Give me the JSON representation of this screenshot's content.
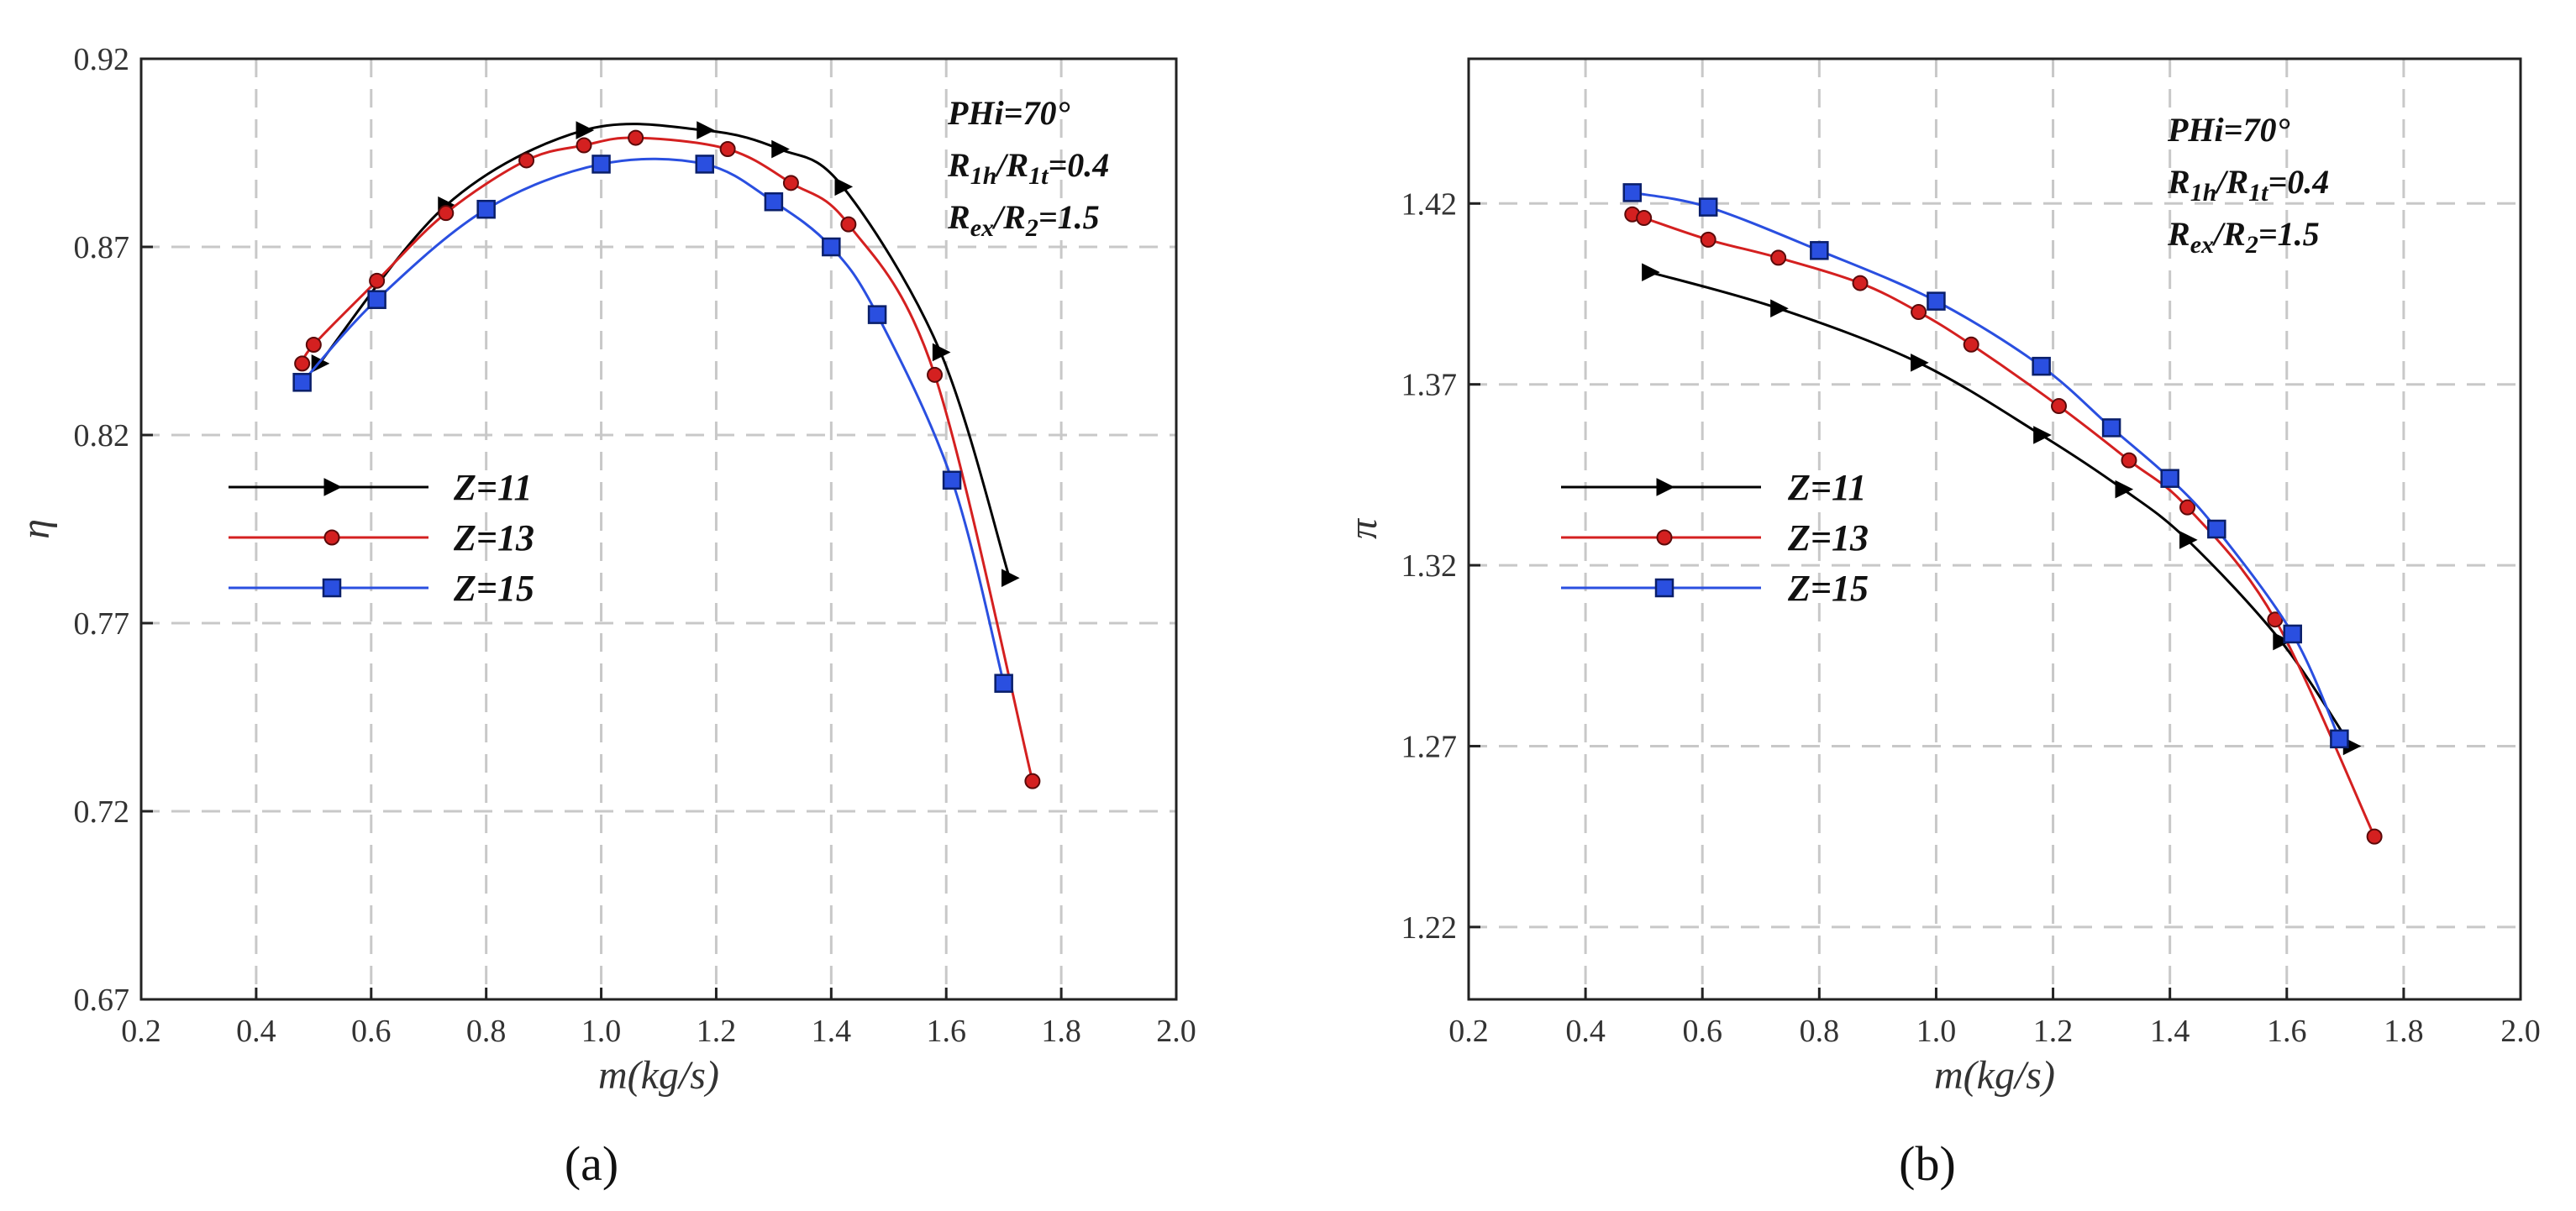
{
  "chart_data": [
    {
      "type": "line",
      "panel_label": "(a)",
      "xlabel": "m(kg/s)",
      "ylabel": "η",
      "xlim": [
        0.2,
        2.0
      ],
      "ylim": [
        0.67,
        0.92
      ],
      "xticks": [
        "0.2",
        "0.4",
        "0.6",
        "0.8",
        "1.0",
        "1.2",
        "1.4",
        "1.6",
        "1.8",
        "2.0"
      ],
      "yticks": [
        "0.67",
        "0.72",
        "0.77",
        "0.82",
        "0.87",
        "0.92"
      ],
      "grid": true,
      "legend_position": "center-left",
      "annotations": [
        "PHi=70°",
        "R1h/R1t=0.4",
        "Rex/R2=1.5"
      ],
      "series": [
        {
          "name": "Z=11",
          "color": "#000000",
          "marker": "triangle-right",
          "x": [
            0.51,
            0.73,
            0.97,
            1.18,
            1.31,
            1.42,
            1.59,
            1.71
          ],
          "y": [
            0.839,
            0.881,
            0.901,
            0.901,
            0.896,
            0.886,
            0.842,
            0.782
          ]
        },
        {
          "name": "Z=13",
          "color": "#d42020",
          "marker": "circle",
          "x": [
            0.48,
            0.5,
            0.61,
            0.73,
            0.87,
            0.97,
            1.06,
            1.22,
            1.33,
            1.43,
            1.58,
            1.75
          ],
          "y": [
            0.839,
            0.844,
            0.861,
            0.879,
            0.893,
            0.897,
            0.899,
            0.896,
            0.887,
            0.876,
            0.836,
            0.728
          ]
        },
        {
          "name": "Z=15",
          "color": "#2a4fe0",
          "marker": "square",
          "x": [
            0.48,
            0.61,
            0.8,
            1.0,
            1.18,
            1.3,
            1.4,
            1.48,
            1.61,
            1.7
          ],
          "y": [
            0.834,
            0.856,
            0.88,
            0.892,
            0.892,
            0.882,
            0.87,
            0.852,
            0.808,
            0.754
          ]
        }
      ]
    },
    {
      "type": "line",
      "panel_label": "(b)",
      "xlabel": "m(kg/s)",
      "ylabel": "π",
      "xlim": [
        0.2,
        2.0
      ],
      "ylim": [
        1.2,
        1.46
      ],
      "xticks": [
        "0.2",
        "0.4",
        "0.6",
        "0.8",
        "1.0",
        "1.2",
        "1.4",
        "1.6",
        "1.8",
        "2.0"
      ],
      "yticks": [
        "1.22",
        "1.27",
        "1.32",
        "1.37",
        "1.42"
      ],
      "grid": true,
      "legend_position": "center-left",
      "annotations": [
        "PHi=70°",
        "R1h/R1t=0.4",
        "Rex/R2=1.5"
      ],
      "series": [
        {
          "name": "Z=11",
          "color": "#000000",
          "marker": "triangle-right",
          "x": [
            0.51,
            0.73,
            0.97,
            1.18,
            1.32,
            1.43,
            1.59,
            1.71
          ],
          "y": [
            1.401,
            1.391,
            1.376,
            1.356,
            1.341,
            1.327,
            1.299,
            1.27
          ]
        },
        {
          "name": "Z=13",
          "color": "#d42020",
          "marker": "circle",
          "x": [
            0.48,
            0.5,
            0.61,
            0.73,
            0.87,
            0.97,
            1.06,
            1.21,
            1.33,
            1.43,
            1.58,
            1.75
          ],
          "y": [
            1.417,
            1.416,
            1.41,
            1.405,
            1.398,
            1.39,
            1.381,
            1.364,
            1.349,
            1.336,
            1.305,
            1.245
          ]
        },
        {
          "name": "Z=15",
          "color": "#2a4fe0",
          "marker": "square",
          "x": [
            0.48,
            0.61,
            0.8,
            1.0,
            1.18,
            1.3,
            1.4,
            1.48,
            1.61,
            1.69
          ],
          "y": [
            1.423,
            1.419,
            1.407,
            1.393,
            1.375,
            1.358,
            1.344,
            1.33,
            1.301,
            1.272
          ]
        }
      ]
    }
  ]
}
